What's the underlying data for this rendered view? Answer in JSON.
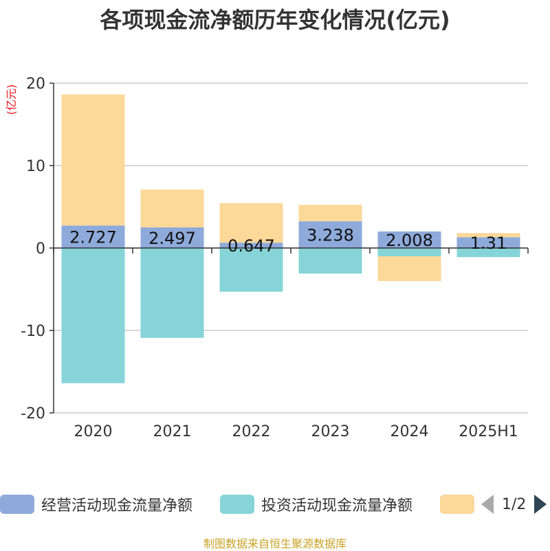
{
  "title": "各项现金流净额历年变化情况(亿元)",
  "source": "制图数据来自恒生聚源数据库",
  "pager": {
    "text": "1/2"
  },
  "chart_data": {
    "type": "bar",
    "stacked": true,
    "categories": [
      "2020",
      "2021",
      "2022",
      "2023",
      "2024",
      "2025H1"
    ],
    "ylabel": "(亿元)",
    "ylim": [
      -20,
      20
    ],
    "yticks": [
      20,
      10,
      0,
      -10,
      -20
    ],
    "ytick_labels": [
      "20",
      "10",
      "0",
      "-10",
      "-20"
    ],
    "grid": true,
    "legend_position": "bottom",
    "series": [
      {
        "name": "经营活动现金流量净额",
        "color": "#8eaadb",
        "values": [
          2.727,
          2.497,
          0.647,
          3.238,
          2.008,
          1.31
        ],
        "labels": [
          "2.727",
          "2.497",
          "0.647",
          "3.238",
          "2.008",
          "1.31"
        ]
      },
      {
        "name": "投资活动现金流量净额",
        "color": "#86d4d7",
        "values": [
          -16.4,
          -10.9,
          -5.3,
          -3.1,
          -1.0,
          -1.1
        ]
      },
      {
        "name": "",
        "color": "#fcd899",
        "values": [
          15.9,
          4.6,
          4.8,
          2.0,
          -3.0,
          0.5
        ]
      }
    ]
  }
}
